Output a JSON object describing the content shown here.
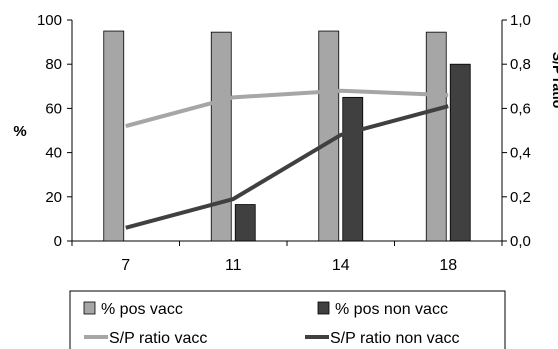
{
  "chart_data": {
    "type": "bar",
    "categories": [
      "7",
      "11",
      "14",
      "18"
    ],
    "title": "",
    "xlabel": "",
    "ylabel": "%",
    "ylim": [
      0,
      100
    ],
    "y_ticks": [
      "0",
      "20",
      "40",
      "60",
      "80",
      "100"
    ],
    "y2label": "S/P ratio",
    "y2lim": [
      0,
      1.0
    ],
    "y2_ticks": [
      "0,0",
      "0,2",
      "0,4",
      "0,6",
      "0,8",
      "1,0"
    ],
    "grid": false,
    "legend_position": "bottom",
    "bar_series": [
      {
        "name": "% pos vacc",
        "values": [
          95,
          94.5,
          95,
          94.5
        ],
        "color": "#a6a6a6"
      },
      {
        "name": "% pos non vacc",
        "values": [
          null,
          16.5,
          65,
          80
        ],
        "color": "#404040"
      }
    ],
    "line_series": [
      {
        "name": "S/P ratio vacc",
        "values": [
          0.52,
          0.65,
          0.68,
          0.66
        ],
        "color": "#a6a6a6",
        "axis": "right"
      },
      {
        "name": "S/P ratio non vacc",
        "values": [
          0.06,
          0.19,
          0.48,
          0.61
        ],
        "color": "#404040",
        "axis": "right"
      }
    ]
  }
}
